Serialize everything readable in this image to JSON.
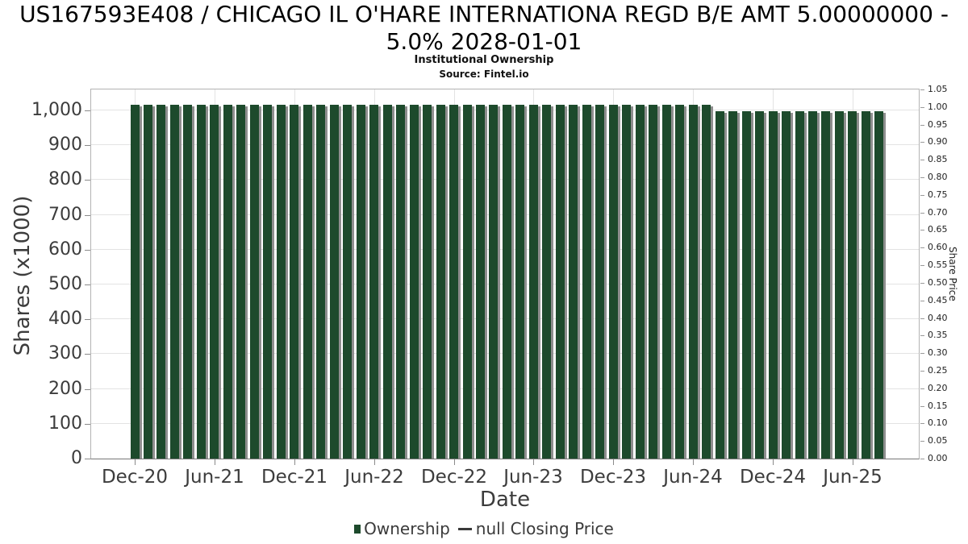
{
  "header": {
    "title_line1": "US167593E408 / CHICAGO IL O'HARE INTERNATIONA REGD B/E AMT 5.00000000 -",
    "title_line2": "5.0% 2028-01-01"
  },
  "chart_data": {
    "type": "bar",
    "title": "US167593E408 / CHICAGO IL O'HARE INTERNATIONA REGD B/E AMT 5.00000000 - 5.0% 2028-01-01",
    "subtitle": "Institutional Ownership",
    "source": "Source: Fintel.io",
    "categories": [
      "Dec-20",
      "Jan-21",
      "Feb-21",
      "Mar-21",
      "Apr-21",
      "May-21",
      "Jun-21",
      "Jul-21",
      "Aug-21",
      "Sep-21",
      "Oct-21",
      "Nov-21",
      "Dec-21",
      "Jan-22",
      "Feb-22",
      "Mar-22",
      "Apr-22",
      "May-22",
      "Jun-22",
      "Jul-22",
      "Aug-22",
      "Sep-22",
      "Oct-22",
      "Nov-22",
      "Dec-22",
      "Jan-23",
      "Feb-23",
      "Mar-23",
      "Apr-23",
      "May-23",
      "Jun-23",
      "Jul-23",
      "Aug-23",
      "Sep-23",
      "Oct-23",
      "Nov-23",
      "Dec-23",
      "Jan-24",
      "Feb-24",
      "Mar-24",
      "Apr-24",
      "May-24",
      "Jun-24",
      "Jul-24",
      "Aug-24",
      "Sep-24",
      "Oct-24",
      "Nov-24",
      "Dec-24",
      "Jan-25",
      "Feb-25",
      "Mar-25",
      "Apr-25",
      "May-25",
      "Jun-25",
      "Jul-25",
      "Aug-25"
    ],
    "series": [
      {
        "name": "Ownership",
        "type": "bar",
        "color": "#1d4a2c",
        "shadow_color": "#8e8e8e",
        "values": [
          1015,
          1015,
          1015,
          1015,
          1015,
          1015,
          1015,
          1015,
          1015,
          1015,
          1015,
          1015,
          1015,
          1015,
          1015,
          1015,
          1015,
          1015,
          1015,
          1015,
          1015,
          1015,
          1015,
          1015,
          1015,
          1015,
          1015,
          1015,
          1015,
          1015,
          1015,
          1015,
          1015,
          1015,
          1015,
          1015,
          1015,
          1015,
          1015,
          1015,
          1015,
          1015,
          1015,
          1015,
          997,
          997,
          997,
          997,
          997,
          997,
          997,
          997,
          997,
          997,
          997,
          997,
          997
        ]
      },
      {
        "name": "null Closing Price",
        "type": "line",
        "values": []
      }
    ],
    "x_axis": {
      "label": "Date",
      "tick_labels": [
        "Dec-20",
        "Jun-21",
        "Dec-21",
        "Jun-22",
        "Dec-22",
        "Jun-23",
        "Dec-23",
        "Jun-24",
        "Dec-24",
        "Jun-25"
      ]
    },
    "y_axis_left": {
      "label": "Shares (x1000)",
      "tick_labels": [
        "0",
        "100",
        "200",
        "300",
        "400",
        "500",
        "600",
        "700",
        "800",
        "900",
        "1,000"
      ],
      "tick_step": 100,
      "range": [
        0,
        1060
      ]
    },
    "y_axis_right": {
      "label": "Share Price",
      "tick_labels": [
        "0.00",
        "0.05",
        "0.10",
        "0.15",
        "0.20",
        "0.25",
        "0.30",
        "0.35",
        "0.40",
        "0.45",
        "0.50",
        "0.55",
        "0.60",
        "0.65",
        "0.70",
        "0.75",
        "0.80",
        "0.85",
        "0.90",
        "0.95",
        "1.00",
        "1.05"
      ],
      "range": [
        0,
        1.05
      ]
    },
    "grid": true,
    "legend": {
      "position": "bottom",
      "items": [
        {
          "label": "Ownership",
          "marker": "square",
          "color": "#1d4a2c"
        },
        {
          "label": "null Closing Price",
          "marker": "dash",
          "color": "#3a3a3a"
        }
      ]
    }
  }
}
